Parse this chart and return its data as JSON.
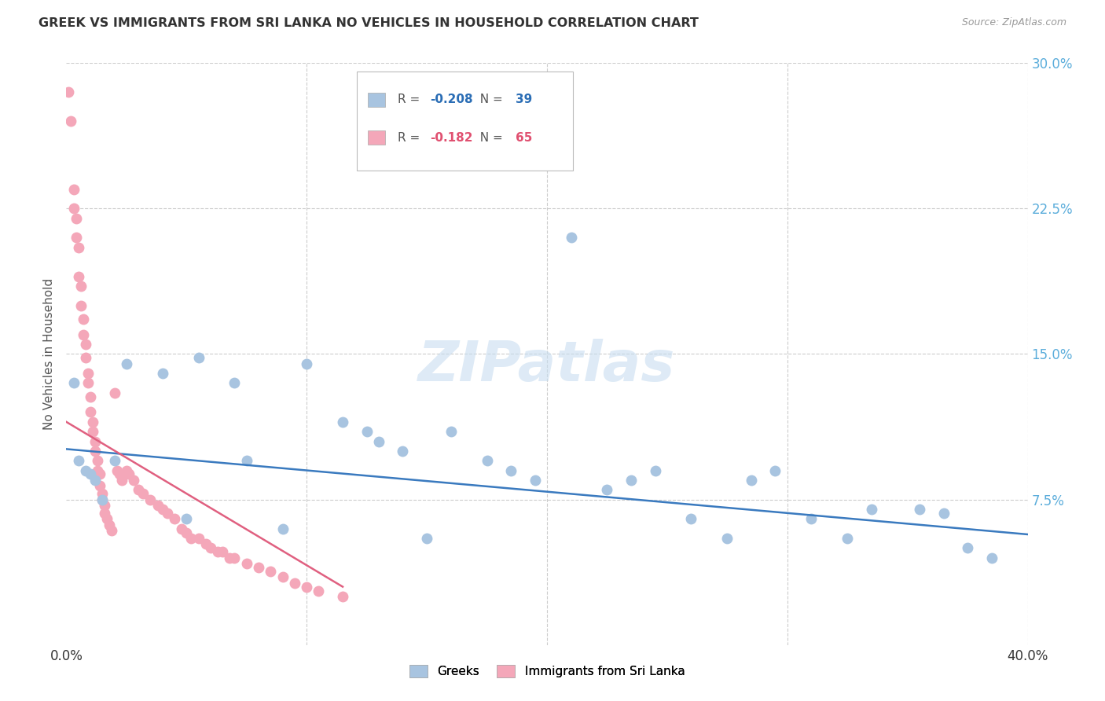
{
  "title": "GREEK VS IMMIGRANTS FROM SRI LANKA NO VEHICLES IN HOUSEHOLD CORRELATION CHART",
  "source": "Source: ZipAtlas.com",
  "ylabel": "No Vehicles in Household",
  "watermark": "ZIPatlas",
  "blue_label": "Greeks",
  "pink_label": "Immigrants from Sri Lanka",
  "blue_R": -0.208,
  "blue_N": 39,
  "pink_R": -0.182,
  "pink_N": 65,
  "xlim": [
    0.0,
    0.4
  ],
  "ylim": [
    0.0,
    0.3
  ],
  "yticks": [
    0.075,
    0.15,
    0.225,
    0.3
  ],
  "ytick_labels": [
    "7.5%",
    "15.0%",
    "22.5%",
    "30.0%"
  ],
  "blue_color": "#a8c4e0",
  "pink_color": "#f4a7b9",
  "blue_line_color": "#3a7abf",
  "pink_line_color": "#e06080",
  "background_color": "#ffffff",
  "grid_color": "#cccccc",
  "blue_x": [
    0.003,
    0.005,
    0.008,
    0.01,
    0.012,
    0.015,
    0.02,
    0.025,
    0.04,
    0.05,
    0.055,
    0.07,
    0.075,
    0.09,
    0.1,
    0.115,
    0.125,
    0.13,
    0.14,
    0.15,
    0.16,
    0.175,
    0.185,
    0.195,
    0.21,
    0.225,
    0.235,
    0.245,
    0.26,
    0.275,
    0.285,
    0.295,
    0.31,
    0.325,
    0.335,
    0.355,
    0.365,
    0.375,
    0.385
  ],
  "blue_y": [
    0.135,
    0.095,
    0.09,
    0.088,
    0.085,
    0.075,
    0.095,
    0.145,
    0.14,
    0.065,
    0.148,
    0.135,
    0.095,
    0.06,
    0.145,
    0.115,
    0.11,
    0.105,
    0.1,
    0.055,
    0.11,
    0.095,
    0.09,
    0.085,
    0.21,
    0.08,
    0.085,
    0.09,
    0.065,
    0.055,
    0.085,
    0.09,
    0.065,
    0.055,
    0.07,
    0.07,
    0.068,
    0.05,
    0.045
  ],
  "pink_x": [
    0.001,
    0.002,
    0.003,
    0.003,
    0.004,
    0.004,
    0.005,
    0.005,
    0.006,
    0.006,
    0.007,
    0.007,
    0.008,
    0.008,
    0.009,
    0.009,
    0.01,
    0.01,
    0.011,
    0.011,
    0.012,
    0.012,
    0.013,
    0.013,
    0.014,
    0.014,
    0.015,
    0.015,
    0.016,
    0.016,
    0.017,
    0.018,
    0.019,
    0.02,
    0.021,
    0.022,
    0.023,
    0.025,
    0.026,
    0.028,
    0.03,
    0.032,
    0.035,
    0.038,
    0.04,
    0.042,
    0.045,
    0.048,
    0.05,
    0.052,
    0.055,
    0.058,
    0.06,
    0.063,
    0.065,
    0.068,
    0.07,
    0.075,
    0.08,
    0.085,
    0.09,
    0.095,
    0.1,
    0.105,
    0.115
  ],
  "pink_y": [
    0.285,
    0.27,
    0.235,
    0.225,
    0.22,
    0.21,
    0.205,
    0.19,
    0.185,
    0.175,
    0.168,
    0.16,
    0.155,
    0.148,
    0.14,
    0.135,
    0.128,
    0.12,
    0.115,
    0.11,
    0.105,
    0.1,
    0.095,
    0.09,
    0.088,
    0.082,
    0.078,
    0.075,
    0.072,
    0.068,
    0.065,
    0.062,
    0.059,
    0.13,
    0.09,
    0.088,
    0.085,
    0.09,
    0.088,
    0.085,
    0.08,
    0.078,
    0.075,
    0.072,
    0.07,
    0.068,
    0.065,
    0.06,
    0.058,
    0.055,
    0.055,
    0.052,
    0.05,
    0.048,
    0.048,
    0.045,
    0.045,
    0.042,
    0.04,
    0.038,
    0.035,
    0.032,
    0.03,
    0.028,
    0.025
  ],
  "blue_line_x": [
    0.0,
    0.4
  ],
  "blue_line_y": [
    0.101,
    0.057
  ],
  "pink_line_x": [
    0.0,
    0.115
  ],
  "pink_line_y": [
    0.115,
    0.03
  ]
}
